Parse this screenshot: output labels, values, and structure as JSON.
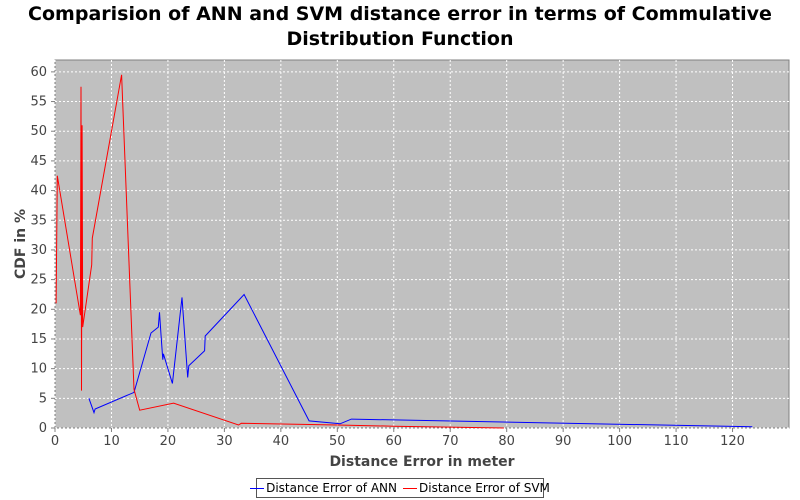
{
  "chart_data": {
    "type": "line",
    "title_lines": [
      "Comparision of ANN and SVM distance error in terms of Commulative",
      "Distribution Function"
    ],
    "xlabel": "Distance Error in meter",
    "ylabel": "CDF in %",
    "xlim": [
      0,
      130
    ],
    "ylim": [
      0,
      62
    ],
    "xticks": [
      "0",
      "10",
      "20",
      "30",
      "40",
      "50",
      "60",
      "70",
      "80",
      "90",
      "100",
      "110",
      "120"
    ],
    "yticks": [
      "0",
      "5",
      "10",
      "15",
      "20",
      "25",
      "30",
      "35",
      "40",
      "45",
      "50",
      "55",
      "60"
    ],
    "grid": true,
    "legend_position": "bottom",
    "series": [
      {
        "name": "Distance Error of ANN",
        "color": "#0000ff",
        "points": [
          [
            6.0,
            5.0
          ],
          [
            6.3,
            4.2
          ],
          [
            6.9,
            2.6
          ],
          [
            7.1,
            3.2
          ],
          [
            14.0,
            6.0
          ],
          [
            17.0,
            16.0
          ],
          [
            18.3,
            17.0
          ],
          [
            18.5,
            19.5
          ],
          [
            18.8,
            15.5
          ],
          [
            19.1,
            11.5
          ],
          [
            19.2,
            12.5
          ],
          [
            20.8,
            7.5
          ],
          [
            22.5,
            22.0
          ],
          [
            23.5,
            8.5
          ],
          [
            23.7,
            10.5
          ],
          [
            26.5,
            13.0
          ],
          [
            26.6,
            15.5
          ],
          [
            33.5,
            22.5
          ],
          [
            45.0,
            1.2
          ],
          [
            50.5,
            0.7
          ],
          [
            52.5,
            1.5
          ],
          [
            123.5,
            0.2
          ]
        ]
      },
      {
        "name": "Distance Error of SVM",
        "color": "#ff0000",
        "points": [
          [
            0.2,
            21.0
          ],
          [
            0.4,
            42.5
          ],
          [
            4.5,
            19.0
          ],
          [
            4.6,
            57.5
          ],
          [
            4.7,
            6.3
          ],
          [
            4.8,
            51.0
          ],
          [
            4.9,
            17.0
          ],
          [
            6.5,
            27.5
          ],
          [
            6.6,
            32.0
          ],
          [
            11.8,
            59.5
          ],
          [
            14.0,
            6.5
          ],
          [
            15.0,
            3.0
          ],
          [
            21.0,
            4.2
          ],
          [
            32.5,
            0.5
          ],
          [
            33.0,
            0.8
          ],
          [
            50.0,
            0.5
          ],
          [
            60.0,
            0.3
          ],
          [
            79.5,
            0.0
          ]
        ]
      }
    ]
  }
}
